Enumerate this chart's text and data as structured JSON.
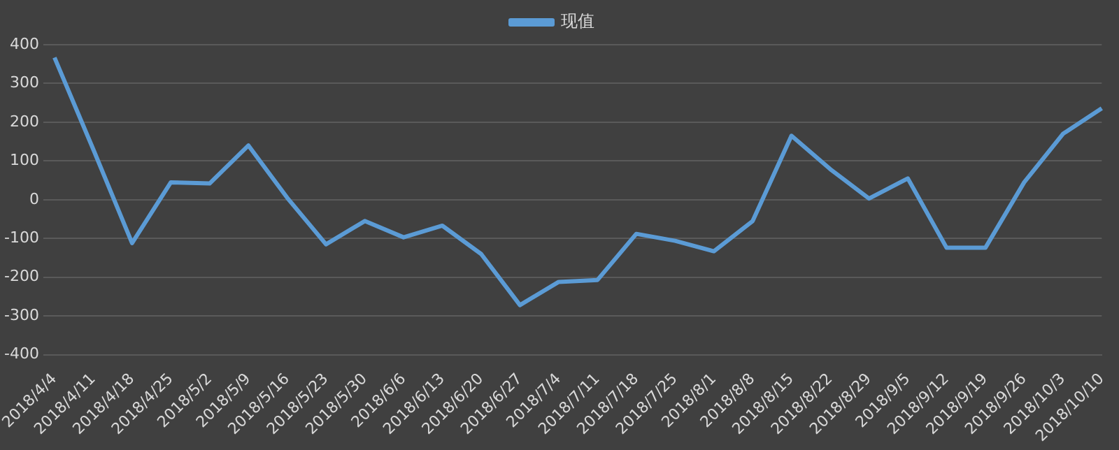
{
  "chart_data": {
    "type": "line",
    "categories": [
      "2018/4/4",
      "2018/4/11",
      "2018/4/18",
      "2018/4/25",
      "2018/5/2",
      "2018/5/9",
      "2018/5/16",
      "2018/5/23",
      "2018/5/30",
      "2018/6/6",
      "2018/6/13",
      "2018/6/20",
      "2018/6/27",
      "2018/7/4",
      "2018/7/11",
      "2018/7/18",
      "2018/7/25",
      "2018/8/1",
      "2018/8/8",
      "2018/8/15",
      "2018/8/22",
      "2018/8/29",
      "2018/9/5",
      "2018/9/12",
      "2018/9/19",
      "2018/9/26",
      "2018/10/3",
      "2018/10/10"
    ],
    "series": [
      {
        "name": "现值",
        "color": "#5b9bd5",
        "values": [
          367,
          130,
          -112,
          45,
          42,
          140,
          5,
          -115,
          -55,
          -97,
          -67,
          -140,
          -272,
          -212,
          -207,
          -88,
          -106,
          -133,
          -55,
          165,
          79,
          3,
          55,
          -124,
          -124,
          45,
          170,
          236
        ]
      }
    ],
    "ylim": [
      -400,
      400
    ],
    "yticks": [
      -400,
      -300,
      -200,
      -100,
      0,
      100,
      200,
      300,
      400
    ],
    "grid": "y",
    "legend": "top",
    "marker": "none",
    "line_style": "solid"
  }
}
